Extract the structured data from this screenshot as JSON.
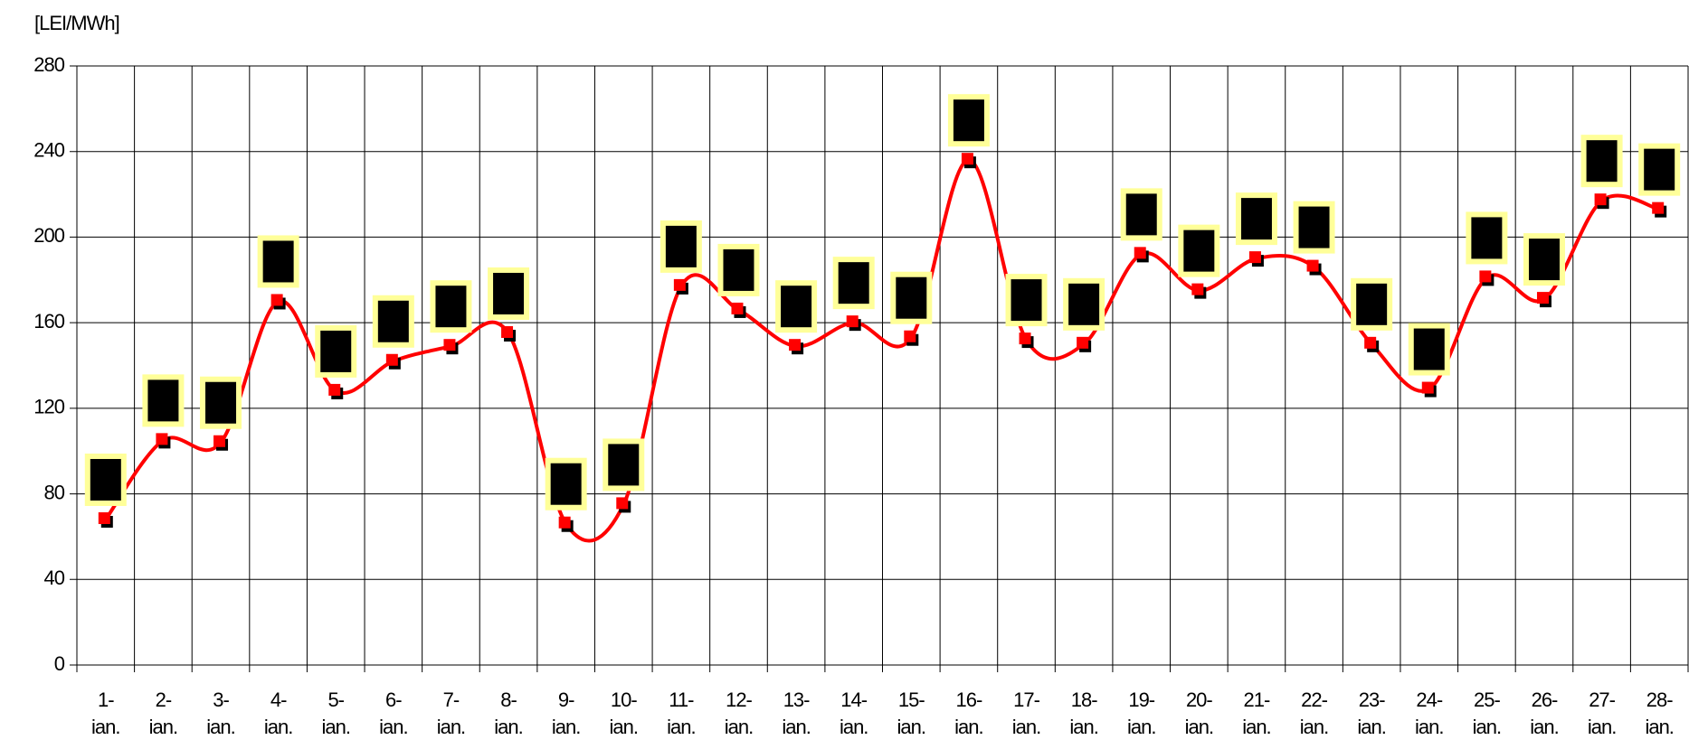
{
  "chart_data": {
    "type": "line",
    "y_label": "[LEI/MWh]",
    "categories": [
      "1-ian.",
      "2-ian.",
      "3-ian.",
      "4-ian.",
      "5-ian.",
      "6-ian.",
      "7-ian.",
      "8-ian.",
      "9-ian.",
      "10-ian.",
      "11-ian.",
      "12-ian.",
      "13-ian.",
      "14-ian.",
      "15-ian.",
      "16-ian.",
      "17-ian.",
      "18-ian.",
      "19-ian.",
      "20-ian.",
      "21-ian.",
      "22-ian.",
      "23-ian.",
      "24-ian.",
      "25-ian.",
      "26-ian.",
      "27-ian.",
      "28-ian."
    ],
    "series": [
      {
        "color": "#ff0000",
        "values": [
          68,
          105,
          104,
          170,
          128,
          142,
          149,
          155,
          66,
          75,
          177,
          166,
          149,
          160,
          153,
          236,
          152,
          150,
          192,
          175,
          190,
          186,
          150,
          129,
          181,
          171,
          217,
          213
        ]
      }
    ],
    "ylim": [
      0,
      280
    ],
    "yticks": [
      0,
      40,
      80,
      120,
      160,
      200,
      240,
      280
    ],
    "grid": true
  }
}
